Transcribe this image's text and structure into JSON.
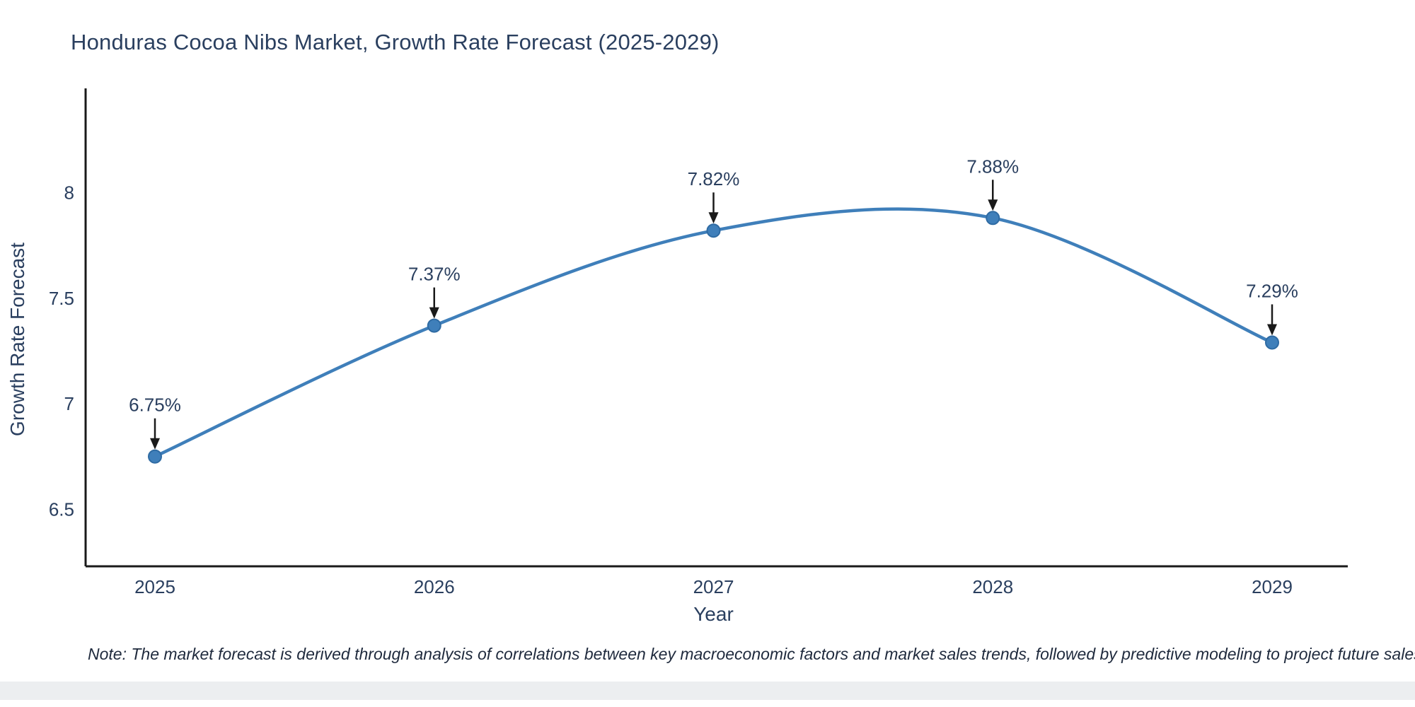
{
  "title": "Honduras Cocoa Nibs Market, Growth Rate Forecast (2025-2029)",
  "note": "Note: The market forecast is derived through analysis of correlations between key macroeconomic factors and market sales trends, followed by predictive modeling to project future sales",
  "chart_data": {
    "type": "line",
    "line_shape": "spline",
    "x": [
      "2025",
      "2026",
      "2027",
      "2028",
      "2029"
    ],
    "values": [
      6.75,
      7.37,
      7.82,
      7.88,
      7.29
    ],
    "point_labels": [
      "6.75%",
      "7.37%",
      "7.82%",
      "7.88%",
      "7.29%"
    ],
    "title": "Honduras Cocoa Nibs Market, Growth Rate Forecast (2025-2029)",
    "xlabel": "Year",
    "ylabel": "Growth Rate Forecast",
    "yticks": [
      6.5,
      7,
      7.5,
      8
    ],
    "ylim": [
      6.23,
      8.38
    ],
    "grid": false,
    "legend": "none",
    "annotations": "value labels with down arrows above each point",
    "colors": {
      "line": "#3f7fba",
      "marker": "#3f7fba",
      "marker_stroke": "#2f6ba3",
      "text": "#2a3f5f",
      "axis": "#1a1a1a",
      "arrow": "#1a1a1a"
    }
  }
}
